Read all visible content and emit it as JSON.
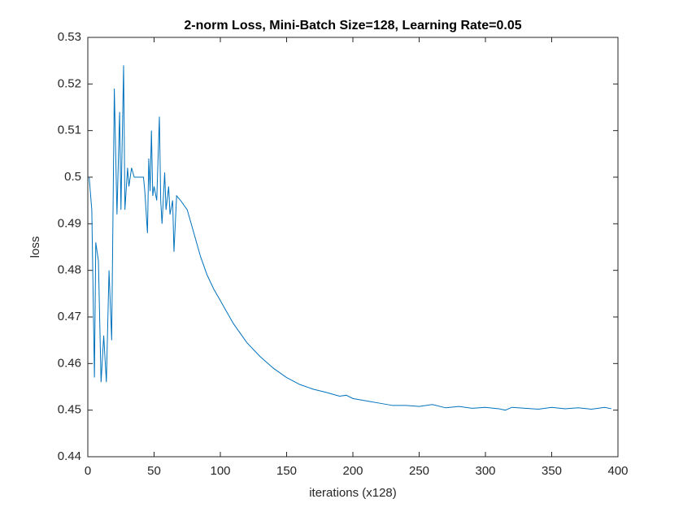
{
  "chart_data": {
    "type": "line",
    "title": "2-norm Loss, Mini-Batch Size=128, Learning Rate=0.05",
    "x_label": "iterations (x128)",
    "y_label": "loss",
    "x": [
      1,
      3,
      5,
      6,
      8,
      10,
      12,
      14,
      16,
      18,
      20,
      22,
      24,
      25,
      27,
      28,
      30,
      31,
      33,
      35,
      40,
      42,
      43,
      45,
      46,
      47,
      48,
      49,
      50,
      52,
      54,
      55,
      56,
      58,
      59,
      61,
      62,
      64,
      65,
      67,
      70,
      75,
      80,
      85,
      90,
      95,
      100,
      110,
      120,
      130,
      140,
      150,
      160,
      170,
      180,
      190,
      195,
      200,
      210,
      220,
      230,
      240,
      250,
      260,
      270,
      280,
      290,
      300,
      310,
      315,
      320,
      330,
      340,
      350,
      360,
      370,
      380,
      390,
      395
    ],
    "series": [
      {
        "name": "loss",
        "color": "#0072bd",
        "values": [
          0.5,
          0.493,
          0.457,
          0.486,
          0.482,
          0.456,
          0.466,
          0.456,
          0.48,
          0.465,
          0.519,
          0.492,
          0.514,
          0.493,
          0.524,
          0.493,
          0.502,
          0.498,
          0.502,
          0.5,
          0.5,
          0.5,
          0.497,
          0.488,
          0.504,
          0.497,
          0.51,
          0.496,
          0.498,
          0.495,
          0.513,
          0.495,
          0.49,
          0.501,
          0.493,
          0.498,
          0.492,
          0.495,
          0.484,
          0.496,
          0.495,
          0.493,
          0.488,
          0.483,
          0.479,
          0.476,
          0.4735,
          0.4685,
          0.4645,
          0.4615,
          0.459,
          0.457,
          0.4555,
          0.4545,
          0.4538,
          0.453,
          0.4532,
          0.4525,
          0.452,
          0.4515,
          0.451,
          0.451,
          0.4508,
          0.4512,
          0.4505,
          0.4508,
          0.4504,
          0.4506,
          0.4503,
          0.45,
          0.4506,
          0.4504,
          0.4502,
          0.4506,
          0.4503,
          0.4505,
          0.4502,
          0.4506,
          0.4503
        ]
      }
    ],
    "xlim": [
      0,
      400
    ],
    "xticks": [
      0,
      50,
      100,
      150,
      200,
      250,
      300,
      350,
      400
    ],
    "ylim": [
      0.44,
      0.53
    ],
    "yticks": [
      0.44,
      0.45,
      0.46,
      0.47,
      0.48,
      0.49,
      0.5,
      0.51,
      0.52,
      0.53
    ],
    "grid": false
  }
}
